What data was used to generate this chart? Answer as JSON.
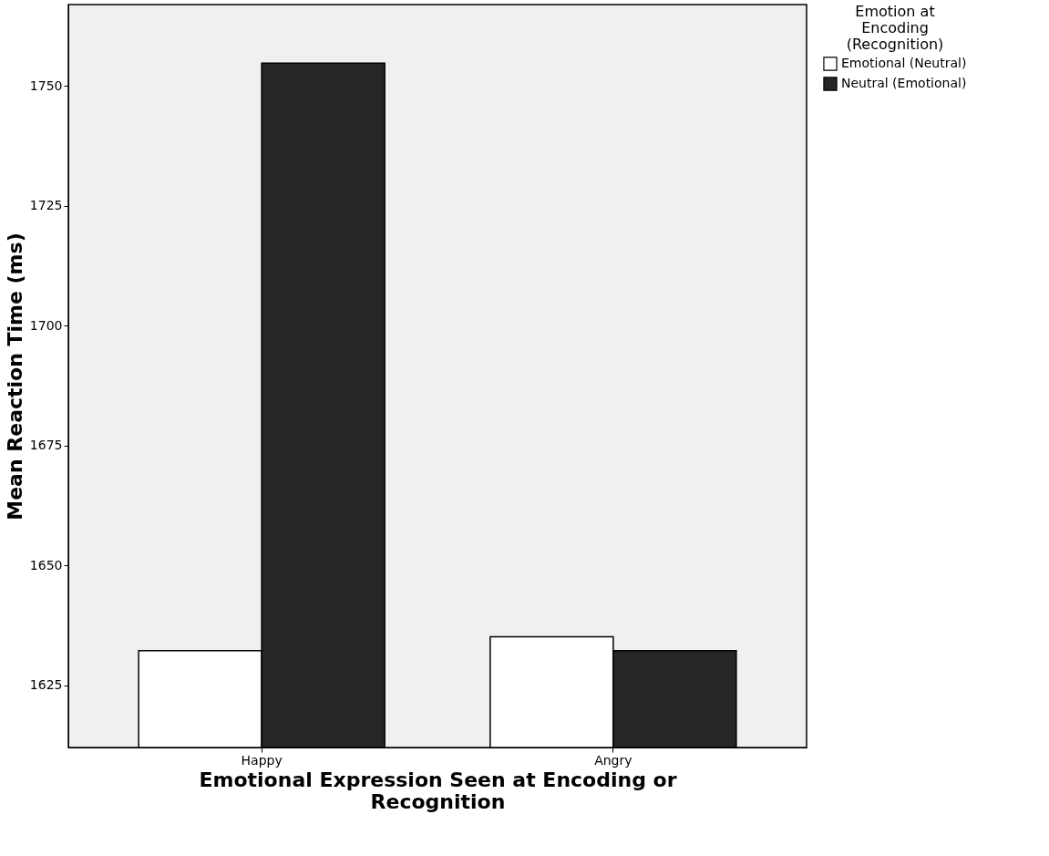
{
  "chart_data": {
    "type": "bar",
    "xlabel": "Emotional Expression Seen at Encoding or Recognition",
    "ylabel": "Mean Reaction Time (ms)",
    "legend_title": "Emotion at Encoding (Recognition)",
    "categories": [
      "Happy",
      "Angry"
    ],
    "series": [
      {
        "name": "Emotional (Neutral)",
        "color": "#ffffff",
        "values": [
          1632.2,
          1635.1
        ]
      },
      {
        "name": "Neutral (Emotional)",
        "color": "#262626",
        "values": [
          1754.8,
          1632.2
        ]
      }
    ],
    "ylim": [
      1612,
      1767
    ],
    "yticks": [
      1625,
      1650,
      1675,
      1700,
      1725,
      1750
    ],
    "grid": false,
    "legend": "top right"
  }
}
